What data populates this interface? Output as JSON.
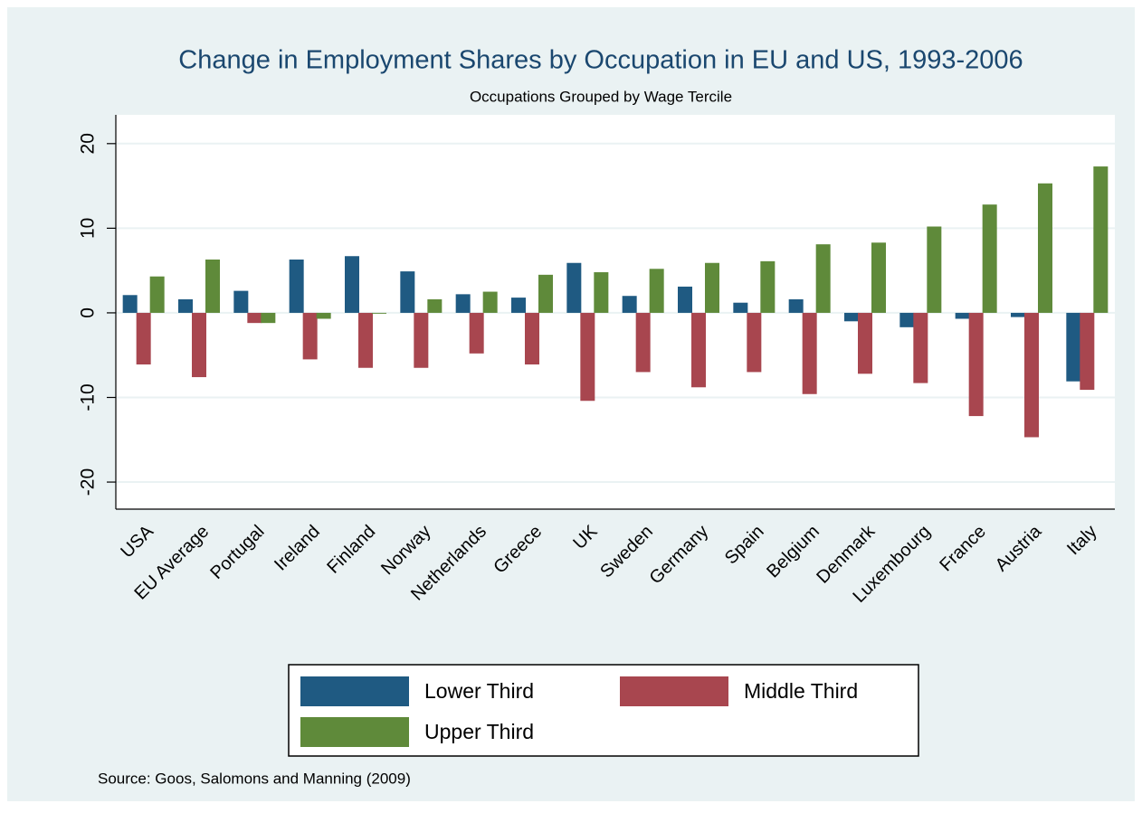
{
  "chart_data": {
    "type": "bar",
    "title": "Change in Employment Shares by Occupation in EU and US, 1993-2006",
    "subtitle": "Occupations Grouped by Wage Tercile",
    "source": "Source: Goos, Salomons and Manning (2009)",
    "categories": [
      "USA",
      "EU Average",
      "Portugal",
      "Ireland",
      "Finland",
      "Norway",
      "Netherlands",
      "Greece",
      "UK",
      "Sweden",
      "Germany",
      "Spain",
      "Belgium",
      "Denmark",
      "Luxembourg",
      "France",
      "Austria",
      "Italy"
    ],
    "series": [
      {
        "name": "Lower Third",
        "color": "#1f5a82",
        "values": [
          2.1,
          1.6,
          2.6,
          6.3,
          6.7,
          4.9,
          2.2,
          1.8,
          5.9,
          2.0,
          3.1,
          1.2,
          1.6,
          -1.0,
          -1.7,
          -0.7,
          -0.5,
          -8.1
        ]
      },
      {
        "name": "Middle Third",
        "color": "#a8464f",
        "values": [
          -6.1,
          -7.6,
          -1.2,
          -5.5,
          -6.5,
          -6.5,
          -4.8,
          -6.1,
          -10.4,
          -7.0,
          -8.8,
          -7.0,
          -9.6,
          -7.2,
          -8.3,
          -12.2,
          -14.7,
          -9.1
        ]
      },
      {
        "name": "Upper Third",
        "color": "#5f8a3a",
        "values": [
          4.3,
          6.3,
          -1.2,
          -0.7,
          -0.1,
          1.6,
          2.5,
          4.5,
          4.8,
          5.2,
          5.9,
          6.1,
          8.1,
          8.3,
          10.2,
          12.8,
          15.3,
          17.3
        ]
      }
    ],
    "ylim": [
      -23.2,
      23.4
    ],
    "yticks": [
      -20,
      -10,
      0,
      10,
      20
    ],
    "grid": true,
    "legend_position": "bottom"
  }
}
